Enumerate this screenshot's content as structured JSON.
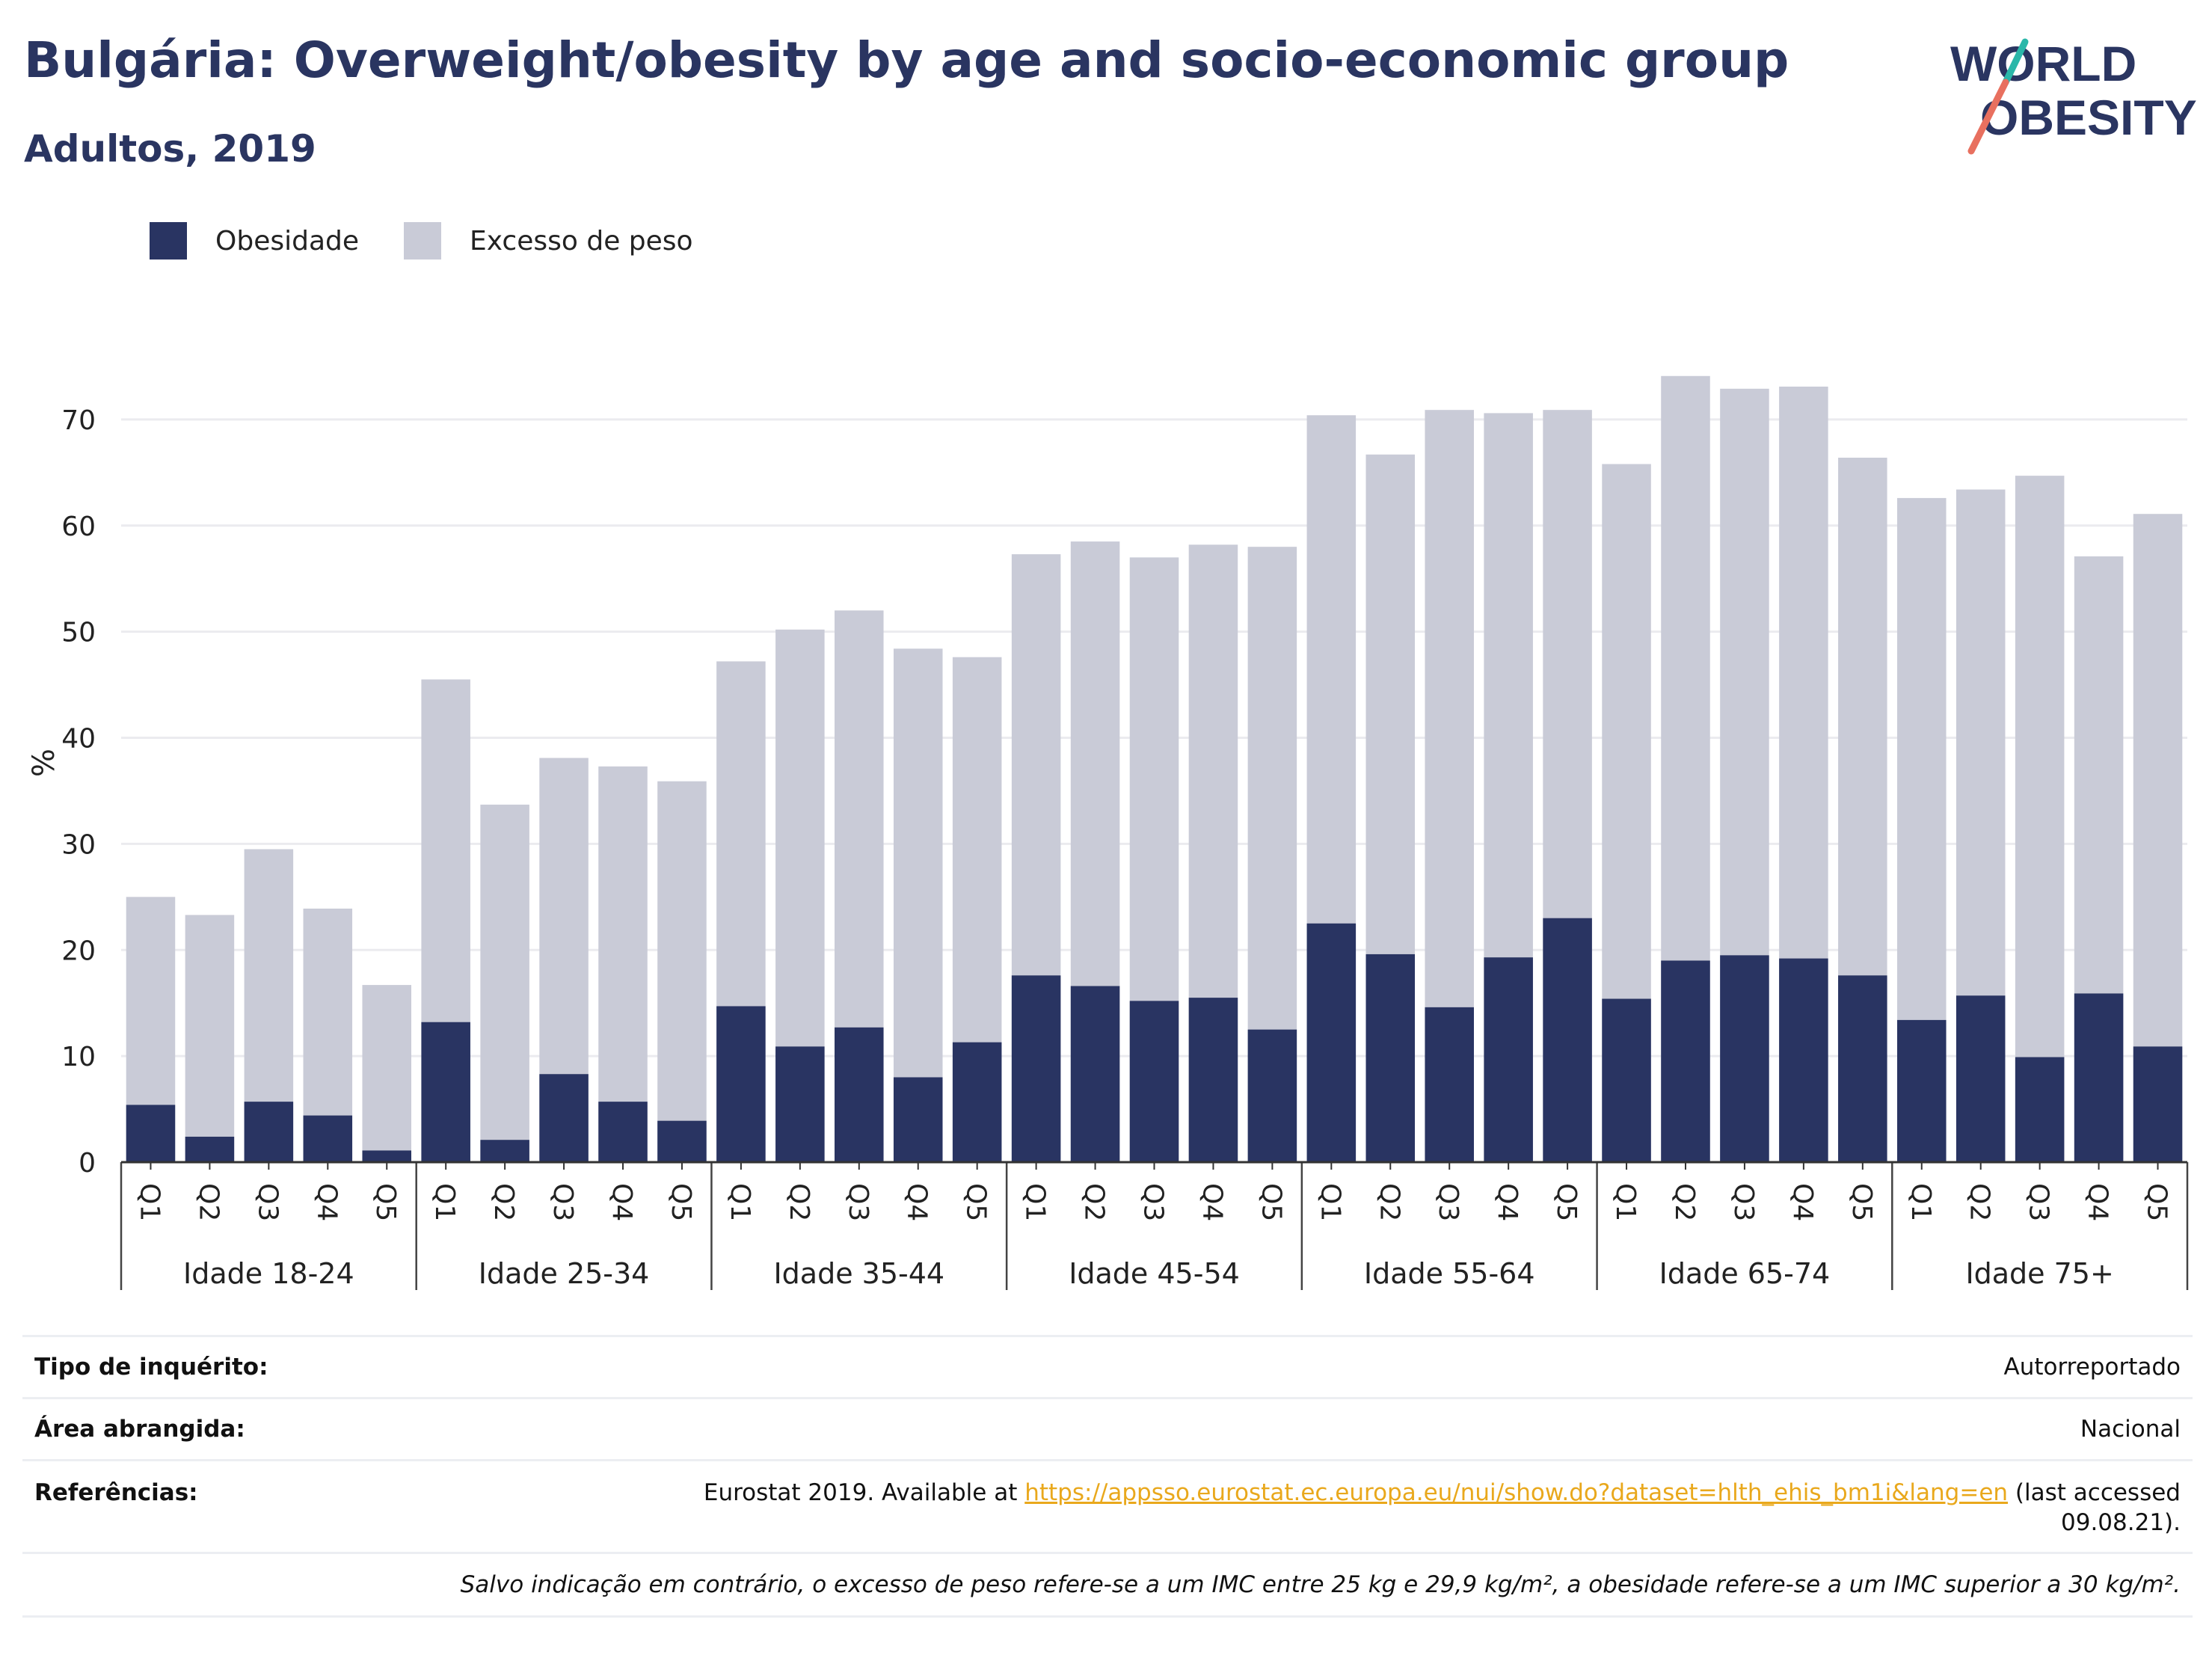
{
  "header": {
    "title": "Bulgária: Overweight/obesity by age and socio-economic group",
    "subtitle": "Adultos, 2019"
  },
  "logo": {
    "line1": "WORLD",
    "line2": "OBESITY"
  },
  "colors": {
    "obesity": "#293462",
    "overweight": "#c9cbd7",
    "accent": "#2a3561",
    "logo_teal": "#2ab7a9",
    "logo_coral": "#e8705f",
    "link": "#e9a81c"
  },
  "chart_data": {
    "type": "bar",
    "stacked": false,
    "ylabel": "%",
    "ylim": [
      0,
      75
    ],
    "yticks": [
      0,
      10,
      20,
      30,
      40,
      50,
      60,
      70
    ],
    "grid": true,
    "legend_position": "top-left",
    "series": [
      {
        "name": "Obesidade",
        "color": "#293462"
      },
      {
        "name": "Excesso de peso",
        "color": "#c9cbd7"
      }
    ],
    "groups": [
      {
        "label": "Idade 18-24",
        "categories": [
          "Q1",
          "Q2",
          "Q3",
          "Q4",
          "Q5"
        ],
        "obesidade": [
          5.4,
          2.4,
          5.7,
          4.4,
          1.1
        ],
        "excesso_de_peso": [
          25.0,
          23.3,
          29.5,
          23.9,
          16.7
        ]
      },
      {
        "label": "Idade 25-34",
        "categories": [
          "Q1",
          "Q2",
          "Q3",
          "Q4",
          "Q5"
        ],
        "obesidade": [
          13.2,
          2.1,
          8.3,
          5.7,
          3.9
        ],
        "excesso_de_peso": [
          45.5,
          33.7,
          38.1,
          37.3,
          35.9
        ]
      },
      {
        "label": "Idade 35-44",
        "categories": [
          "Q1",
          "Q2",
          "Q3",
          "Q4",
          "Q5"
        ],
        "obesidade": [
          14.7,
          10.9,
          12.7,
          8.0,
          11.3
        ],
        "excesso_de_peso": [
          47.2,
          50.2,
          52.0,
          48.4,
          47.6
        ]
      },
      {
        "label": "Idade 45-54",
        "categories": [
          "Q1",
          "Q2",
          "Q3",
          "Q4",
          "Q5"
        ],
        "obesidade": [
          17.6,
          16.6,
          15.2,
          15.5,
          12.5
        ],
        "excesso_de_peso": [
          57.3,
          58.5,
          57.0,
          58.2,
          58.0
        ]
      },
      {
        "label": "Idade 55-64",
        "categories": [
          "Q1",
          "Q2",
          "Q3",
          "Q4",
          "Q5"
        ],
        "obesidade": [
          22.5,
          19.6,
          14.6,
          19.3,
          23.0
        ],
        "excesso_de_peso": [
          70.4,
          66.7,
          70.9,
          70.6,
          70.9
        ]
      },
      {
        "label": "Idade 65-74",
        "categories": [
          "Q1",
          "Q2",
          "Q3",
          "Q4",
          "Q5"
        ],
        "obesidade": [
          15.4,
          19.0,
          19.5,
          19.2,
          17.6
        ],
        "excesso_de_peso": [
          65.8,
          74.1,
          72.9,
          73.1,
          66.4
        ]
      },
      {
        "label": "Idade 75+",
        "categories": [
          "Q1",
          "Q2",
          "Q3",
          "Q4",
          "Q5"
        ],
        "obesidade": [
          13.4,
          15.7,
          9.9,
          15.9,
          10.9
        ],
        "excesso_de_peso": [
          62.6,
          63.4,
          64.7,
          57.1,
          61.1
        ]
      }
    ]
  },
  "info": {
    "survey_label": "Tipo de inquérito:",
    "survey_value": "Autorreportado",
    "area_label": "Área abrangida:",
    "area_value": "Nacional",
    "refs_label": "Referências:",
    "refs_prefix": "Eurostat 2019. Available at ",
    "refs_link": "https://appsso.eurostat.ec.europa.eu/nui/show.do?dataset=hlth_ehis_bm1i&lang=en",
    "refs_suffix_1": " (last accessed",
    "refs_suffix_2": "09.08.21).",
    "note": "Salvo indicação em contrário, o excesso de peso refere-se a um IMC entre 25 kg e 29,9 kg/m², a obesidade refere-se a um IMC superior a 30 kg/m²."
  }
}
